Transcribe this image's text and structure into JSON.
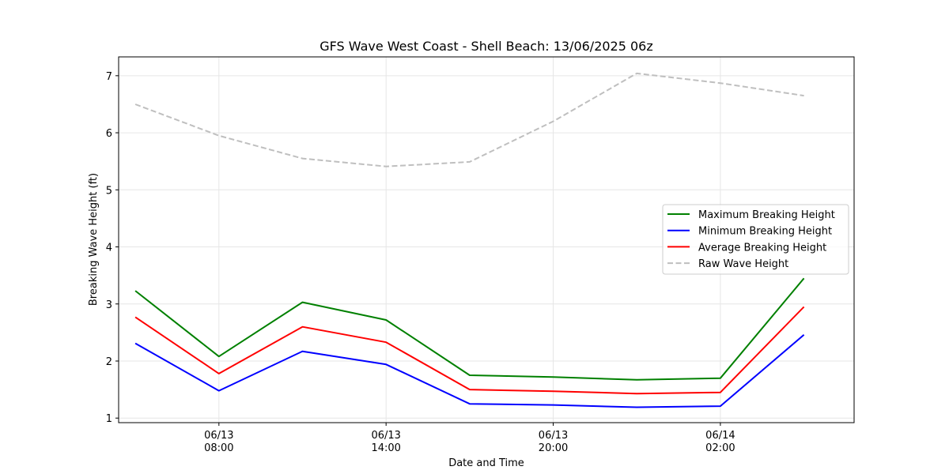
{
  "chart_data": {
    "type": "line",
    "title": "GFS Wave West Coast - Shell Beach: 13/06/2025 06z",
    "xlabel": "Date and Time",
    "ylabel": "Breaking Wave Height (ft)",
    "x": [
      "2025-06-13 05:00",
      "2025-06-13 08:00",
      "2025-06-13 11:00",
      "2025-06-13 14:00",
      "2025-06-13 17:00",
      "2025-06-13 20:00",
      "2025-06-13 23:00",
      "2025-06-14 02:00",
      "2025-06-14 05:00"
    ],
    "xlim": [
      "2025-06-13 04:24",
      "2025-06-14 06:48"
    ],
    "xticks": [
      {
        "at": "2025-06-13 08:00",
        "label": [
          "06/13",
          "08:00"
        ]
      },
      {
        "at": "2025-06-13 14:00",
        "label": [
          "06/13",
          "14:00"
        ]
      },
      {
        "at": "2025-06-13 20:00",
        "label": [
          "06/13",
          "20:00"
        ]
      },
      {
        "at": "2025-06-14 02:00",
        "label": [
          "06/14",
          "02:00"
        ]
      }
    ],
    "ylim": [
      0.92,
      7.33
    ],
    "yticks": [
      1,
      2,
      3,
      4,
      5,
      6,
      7
    ],
    "grid": true,
    "legend_position": "right",
    "series": [
      {
        "name": "Maximum Breaking Height",
        "color": "#008000",
        "dash": false,
        "values": [
          3.23,
          2.08,
          3.03,
          2.72,
          1.75,
          1.72,
          1.67,
          1.7,
          3.45
        ]
      },
      {
        "name": "Minimum Breaking Height",
        "color": "#0000ff",
        "dash": false,
        "values": [
          2.31,
          1.48,
          2.17,
          1.94,
          1.25,
          1.23,
          1.19,
          1.21,
          2.46
        ]
      },
      {
        "name": "Average Breaking Height",
        "color": "#ff0000",
        "dash": false,
        "values": [
          2.77,
          1.78,
          2.6,
          2.33,
          1.5,
          1.47,
          1.43,
          1.45,
          2.95
        ]
      },
      {
        "name": "Raw Wave Height",
        "color": "#bfbfbf",
        "dash": true,
        "values": [
          6.5,
          5.95,
          5.55,
          5.41,
          5.49,
          6.2,
          7.04,
          6.87,
          6.65
        ]
      }
    ]
  }
}
